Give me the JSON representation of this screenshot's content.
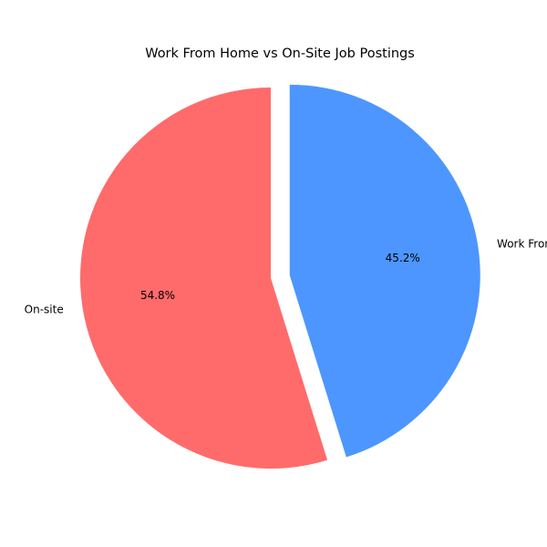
{
  "chart_data": {
    "type": "pie",
    "title": "Work From Home vs On-Site Job Postings",
    "start_angle_deg": 90,
    "direction": "clockwise",
    "slices": [
      {
        "label": "Work From Home",
        "value": 45.2,
        "display_pct": "45.2%",
        "color": "#4d96ff",
        "exploded": true
      },
      {
        "label": "On-site",
        "value": 54.8,
        "display_pct": "54.8%",
        "color": "#ff6b6b",
        "exploded": false
      }
    ]
  }
}
